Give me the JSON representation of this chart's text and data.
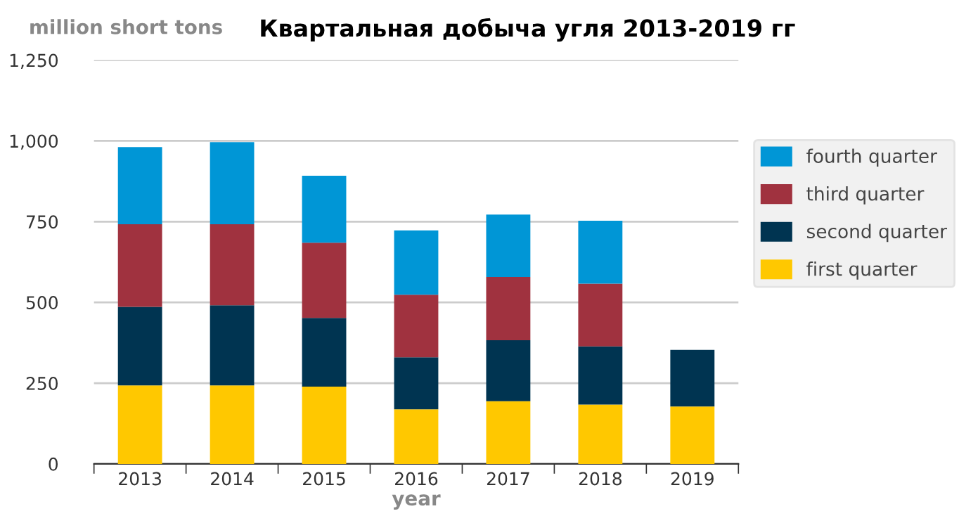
{
  "chart_data": {
    "type": "bar",
    "stacked": true,
    "title": "Квартальная добыча угля 2013-2019 гг",
    "ylabel": "million short tons",
    "xlabel": "year",
    "categories": [
      "2013",
      "2014",
      "2015",
      "2016",
      "2017",
      "2018",
      "2019"
    ],
    "series": [
      {
        "name": "first quarter",
        "color": "#ffc800",
        "values": [
          243,
          243,
          239,
          169,
          194,
          184,
          178
        ]
      },
      {
        "name": "second quarter",
        "color": "#003451",
        "values": [
          243,
          248,
          213,
          161,
          189,
          180,
          175
        ]
      },
      {
        "name": "third quarter",
        "color": "#a0323f",
        "values": [
          256,
          251,
          233,
          194,
          196,
          194,
          null
        ]
      },
      {
        "name": "fourth quarter",
        "color": "#0096d6",
        "values": [
          239,
          254,
          207,
          199,
          193,
          195,
          null
        ]
      }
    ],
    "ylim": [
      0,
      1250
    ],
    "yticks": [
      0,
      {
        "value": 250,
        "label": "250"
      },
      {
        "value": 500,
        "label": "500"
      },
      {
        "value": 750,
        "label": "750"
      },
      {
        "value": 1000,
        "label": "1,000"
      },
      {
        "value": 1250,
        "label": "1,250"
      }
    ],
    "grid": "y",
    "legend": "right"
  }
}
